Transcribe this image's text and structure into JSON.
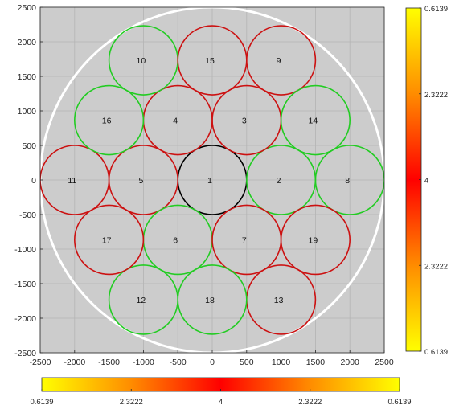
{
  "chart_data": {
    "type": "scatter",
    "title": "",
    "xlabel": "",
    "ylabel": "",
    "xlim": [
      -2500,
      2500
    ],
    "ylim": [
      -2500,
      2500
    ],
    "grid": true,
    "x_ticks": [
      -2500,
      -2000,
      -1500,
      -1000,
      -500,
      0,
      500,
      1000,
      1500,
      2000,
      2500
    ],
    "y_ticks": [
      -2500,
      -2000,
      -1500,
      -1000,
      -500,
      0,
      500,
      1000,
      1500,
      2000,
      2500
    ],
    "boundary_circle": {
      "cx": 0,
      "cy": 0,
      "r": 2500,
      "color": "#ffffff"
    },
    "circle_radius": 500,
    "circles": [
      {
        "label": "1",
        "x": 0,
        "y": 0,
        "color": "#000000"
      },
      {
        "label": "2",
        "x": 1000,
        "y": 0,
        "color": "#22cc22"
      },
      {
        "label": "3",
        "x": 500,
        "y": 866,
        "color": "#cc1111"
      },
      {
        "label": "4",
        "x": -500,
        "y": 866,
        "color": "#cc1111"
      },
      {
        "label": "5",
        "x": -1000,
        "y": 0,
        "color": "#cc1111"
      },
      {
        "label": "6",
        "x": -500,
        "y": -866,
        "color": "#22cc22"
      },
      {
        "label": "7",
        "x": 500,
        "y": -866,
        "color": "#cc1111"
      },
      {
        "label": "8",
        "x": 2000,
        "y": 0,
        "color": "#22cc22"
      },
      {
        "label": "9",
        "x": 1000,
        "y": 1732,
        "color": "#cc1111"
      },
      {
        "label": "10",
        "x": -1000,
        "y": 1732,
        "color": "#22cc22"
      },
      {
        "label": "11",
        "x": -2000,
        "y": 0,
        "color": "#cc1111"
      },
      {
        "label": "12",
        "x": -1000,
        "y": -1732,
        "color": "#22cc22"
      },
      {
        "label": "13",
        "x": 1000,
        "y": -1732,
        "color": "#cc1111"
      },
      {
        "label": "14",
        "x": 1500,
        "y": 866,
        "color": "#22cc22"
      },
      {
        "label": "15",
        "x": 0,
        "y": 1732,
        "color": "#cc1111"
      },
      {
        "label": "16",
        "x": -1500,
        "y": 866,
        "color": "#22cc22"
      },
      {
        "label": "17",
        "x": -1500,
        "y": -866,
        "color": "#cc1111"
      },
      {
        "label": "18",
        "x": 0,
        "y": -1732,
        "color": "#22cc22"
      },
      {
        "label": "19",
        "x": 1500,
        "y": -866,
        "color": "#cc1111"
      }
    ],
    "colorbar_vertical": {
      "ticks": [
        "0.6139",
        "2.3222",
        "4",
        "2.3222",
        "0.6139"
      ],
      "tick_positions": [
        0,
        0.25,
        0.5,
        0.75,
        1
      ],
      "colors": [
        "#ffff00",
        "#ff8c00",
        "#ff0000",
        "#ff8c00",
        "#ffff00"
      ]
    },
    "colorbar_horizontal": {
      "ticks": [
        "0.6139",
        "2.3222",
        "4",
        "2.3222",
        "0.6139"
      ],
      "tick_positions": [
        0,
        0.25,
        0.5,
        0.75,
        1
      ],
      "colors": [
        "#ffff00",
        "#ff8c00",
        "#ff0000",
        "#ff8c00",
        "#ffff00"
      ]
    },
    "colors": {
      "plot_background": "#cccccc",
      "grid": "#b4b4b4",
      "axis": "#262626"
    }
  }
}
